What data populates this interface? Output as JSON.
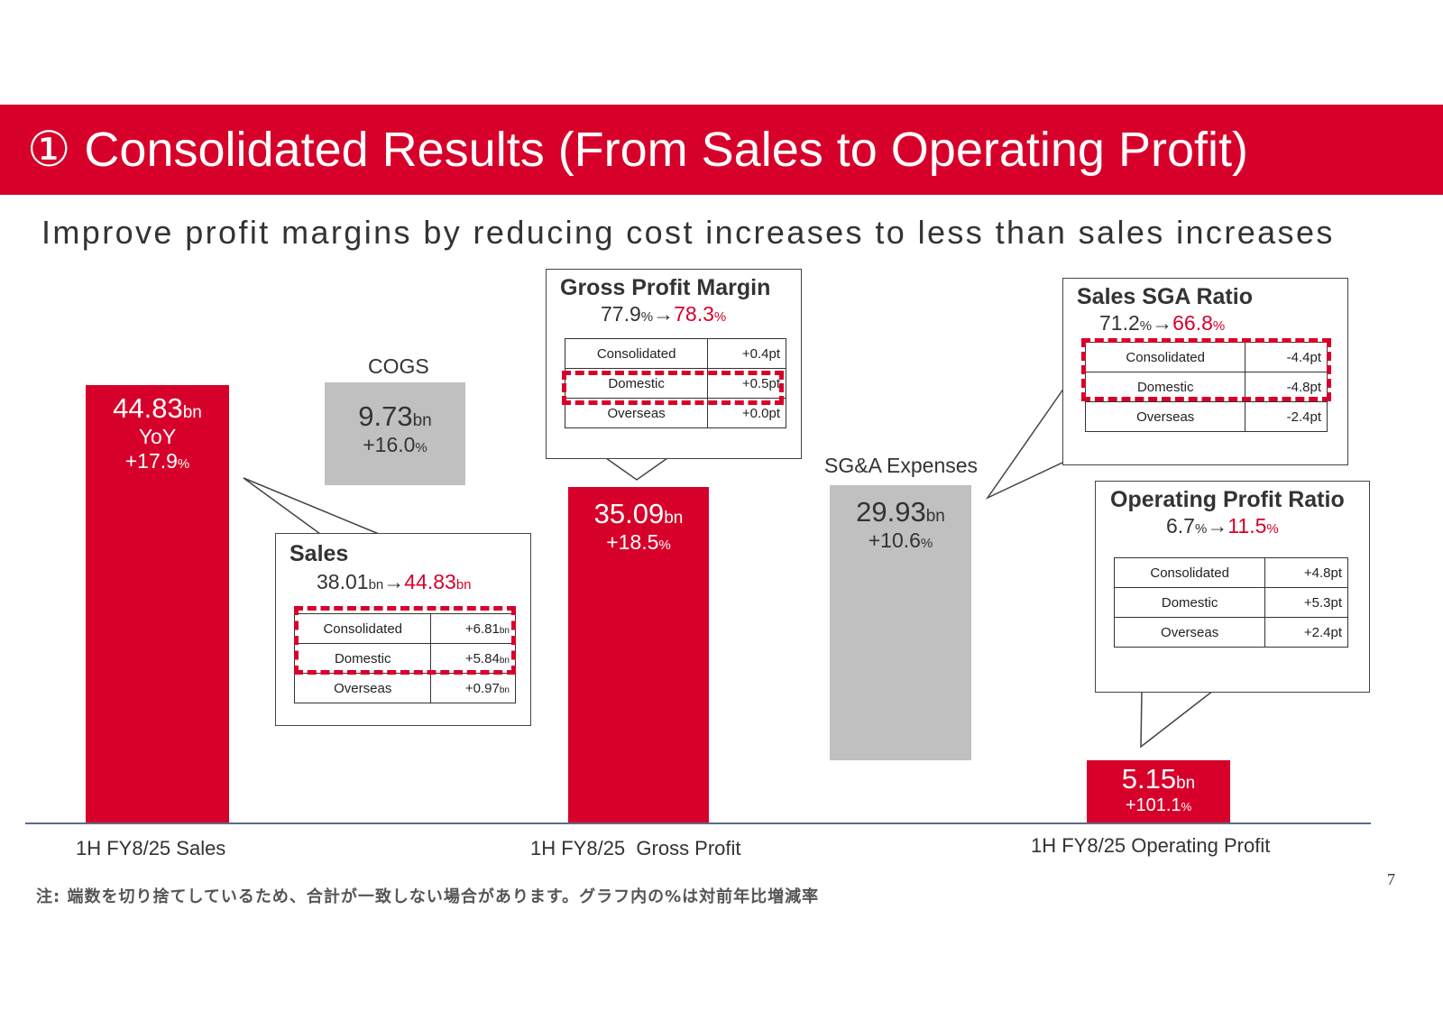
{
  "header": {
    "title": "① Consolidated Results (From Sales to Operating Profit)"
  },
  "subtitle": "Improve profit margins by reducing cost increases to less than sales increases",
  "colors": {
    "accent": "#d7002a",
    "cost_gray": "#c0c0c0"
  },
  "chart_data": {
    "type": "bar",
    "unit": "bn",
    "categories": [
      "1H FY8/25 Sales",
      "COGS",
      "1H FY8/25  Gross Profit",
      "SG&A Expenses",
      "1H FY8/25 Operating Profit"
    ],
    "values": [
      44.83,
      9.73,
      35.09,
      29.93,
      5.15
    ],
    "bars": [
      {
        "value": "44.83",
        "unit": "bn",
        "yoy_label": "YoY",
        "change": "+17.9",
        "pct": "%"
      },
      {
        "label": "COGS",
        "value": "9.73",
        "unit": "bn",
        "change": "+16.0",
        "pct": "%"
      },
      {
        "value": "35.09",
        "unit": "bn",
        "change": "+18.5",
        "pct": "%"
      },
      {
        "label": "SG&A Expenses",
        "value": "29.93",
        "unit": "bn",
        "change": "+10.6",
        "pct": "%"
      },
      {
        "value": "5.15",
        "unit": "bn",
        "change": "+101.1",
        "pct": "%"
      }
    ],
    "x_labels": [
      "1H FY8/25 Sales",
      "1H FY8/25  Gross Profit",
      "1H FY8/25 Operating Profit"
    ],
    "yoy_change_pct": [
      17.9,
      16.0,
      18.5,
      10.6,
      101.1
    ]
  },
  "callouts": {
    "sales": {
      "title": "Sales",
      "from": "38.01",
      "from_unit": "bn",
      "arrow": "→",
      "to": "44.83",
      "to_unit": "bn",
      "rows": [
        {
          "name": "Consolidated",
          "value": "+6.81",
          "unit": "bn"
        },
        {
          "name": "Domestic",
          "value": "+5.84",
          "unit": "bn"
        },
        {
          "name": "Overseas",
          "value": "+0.97",
          "unit": "bn"
        }
      ]
    },
    "gross_margin": {
      "title": "Gross Profit Margin",
      "from": "77.9",
      "from_unit": "%",
      "arrow": "→",
      "to": "78.3",
      "to_unit": "%",
      "rows": [
        {
          "name": "Consolidated",
          "value": "+0.4pt"
        },
        {
          "name": "Domestic",
          "value": "+0.5pt"
        },
        {
          "name": "Overseas",
          "value": "+0.0pt"
        }
      ]
    },
    "sga_ratio": {
      "title": "Sales SGA Ratio",
      "from": "71.2",
      "from_unit": "%",
      "arrow": "→",
      "to": "66.8",
      "to_unit": "%",
      "rows": [
        {
          "name": "Consolidated",
          "value": "-4.4pt"
        },
        {
          "name": "Domestic",
          "value": "-4.8pt"
        },
        {
          "name": "Overseas",
          "value": "-2.4pt"
        }
      ]
    },
    "op_ratio": {
      "title": "Operating Profit Ratio",
      "from": "6.7",
      "from_unit": "%",
      "arrow": "→",
      "to": "11.5",
      "to_unit": "%",
      "rows": [
        {
          "name": "Consolidated",
          "value": "+4.8pt"
        },
        {
          "name": "Domestic",
          "value": "+5.3pt"
        },
        {
          "name": "Overseas",
          "value": "+2.4pt"
        }
      ]
    }
  },
  "footnote": "注: 端数を切り捨てしているため、合計が一致しない場合があります。グラフ内の%は対前年比増減率",
  "page_number": "7"
}
